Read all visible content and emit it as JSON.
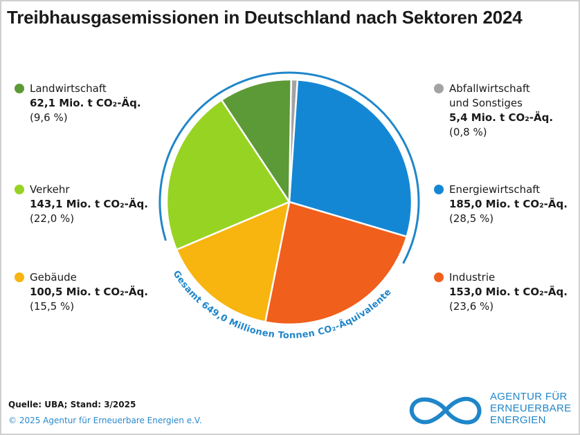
{
  "chart_data": {
    "type": "pie",
    "title": "Treibhausgasemissionen in Deutschland nach Sektoren 2024",
    "total_label": "Gesamt 649,0 Millionen Tonnen CO₂-Äquivalente",
    "unit": "Mio. t CO₂-Äq.",
    "slices": [
      {
        "name": "Abfallwirtschaft und Sonstiges",
        "name_line1": "Abfallwirtschaft",
        "name_line2": "und Sonstiges",
        "value": 5.4,
        "value_label": "5,4 Mio. t CO₂-Äq.",
        "percent": 0.8,
        "percent_label": "(0,8 %)",
        "color": "#a3a3a3"
      },
      {
        "name": "Energiewirtschaft",
        "value": 185.0,
        "value_label": "185,0 Mio. t CO₂-Äq.",
        "percent": 28.5,
        "percent_label": "(28,5 %)",
        "color": "#1487d4"
      },
      {
        "name": "Industrie",
        "value": 153.0,
        "value_label": "153,0 Mio. t CO₂-Äq.",
        "percent": 23.6,
        "percent_label": "(23,6 %)",
        "color": "#f05f1c"
      },
      {
        "name": "Gebäude",
        "value": 100.5,
        "value_label": "100,5 Mio. t CO₂-Äq.",
        "percent": 15.5,
        "percent_label": "(15,5 %)",
        "color": "#f8b40f"
      },
      {
        "name": "Verkehr",
        "value": 143.1,
        "value_label": "143,1 Mio. t CO₂-Äq.",
        "percent": 22.0,
        "percent_label": "(22,0 %)",
        "color": "#97d322"
      },
      {
        "name": "Landwirtschaft",
        "value": 62.1,
        "value_label": "62,1 Mio. t CO₂-Äq.",
        "percent": 9.6,
        "percent_label": "(9,6 %)",
        "color": "#5c9937"
      }
    ]
  },
  "colors": {
    "accent": "#1f86c9",
    "ring": "#1f86c9"
  },
  "footer": {
    "source": "Quelle: UBA; Stand: 3/2025",
    "copyright": "© 2025 Agentur für Erneuerbare Energien e.V."
  },
  "logo": {
    "line1": "AGENTUR FÜR",
    "line2": "ERNEUERBARE",
    "line3": "ENERGIEN",
    "icon": "infinity-icon"
  }
}
